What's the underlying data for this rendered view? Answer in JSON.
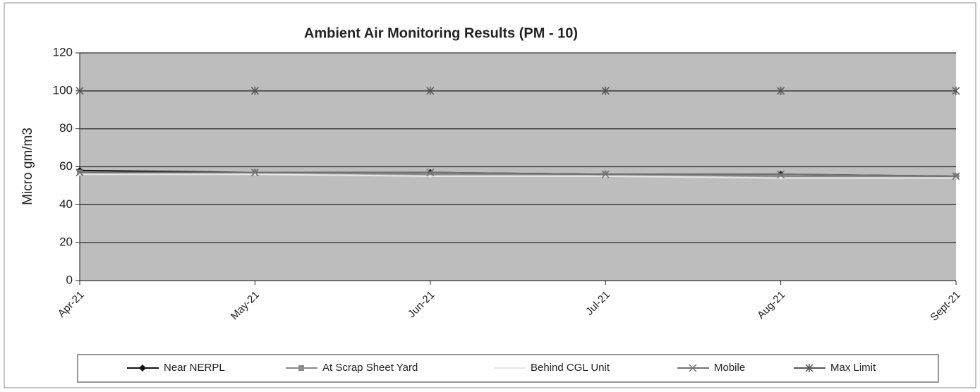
{
  "chart_data": {
    "type": "line",
    "title": "Ambient Air Monitoring Results (PM  - 10)",
    "y_label": "Micro gm/m3",
    "categories": [
      "Apr-21",
      "May-21",
      "Jun-21",
      "Jul-21",
      "Aug-21",
      "Sept-21"
    ],
    "series": [
      {
        "name": "Near NERPL",
        "color": "#111111",
        "marker": "diamond",
        "values": [
          58,
          57,
          57,
          56,
          56,
          55
        ]
      },
      {
        "name": "At Scrap Sheet Yard",
        "color": "#8a8a8a",
        "marker": "square",
        "values": [
          57,
          57,
          56,
          56,
          55,
          55
        ]
      },
      {
        "name": "Behind CGL Unit",
        "color": "#e6e6e6",
        "marker": "none",
        "values": [
          56,
          56,
          55,
          55,
          54,
          54
        ]
      },
      {
        "name": "Mobile",
        "color": "#707070",
        "marker": "x",
        "values": [
          57,
          57,
          57,
          56,
          56,
          55
        ]
      },
      {
        "name": "Max Limit",
        "color": "#555555",
        "marker": "star",
        "values": [
          100,
          100,
          100,
          100,
          100,
          100
        ]
      }
    ],
    "ylim": [
      0,
      120
    ],
    "yticks": [
      0,
      20,
      40,
      60,
      80,
      100,
      120
    ],
    "grid": true
  }
}
